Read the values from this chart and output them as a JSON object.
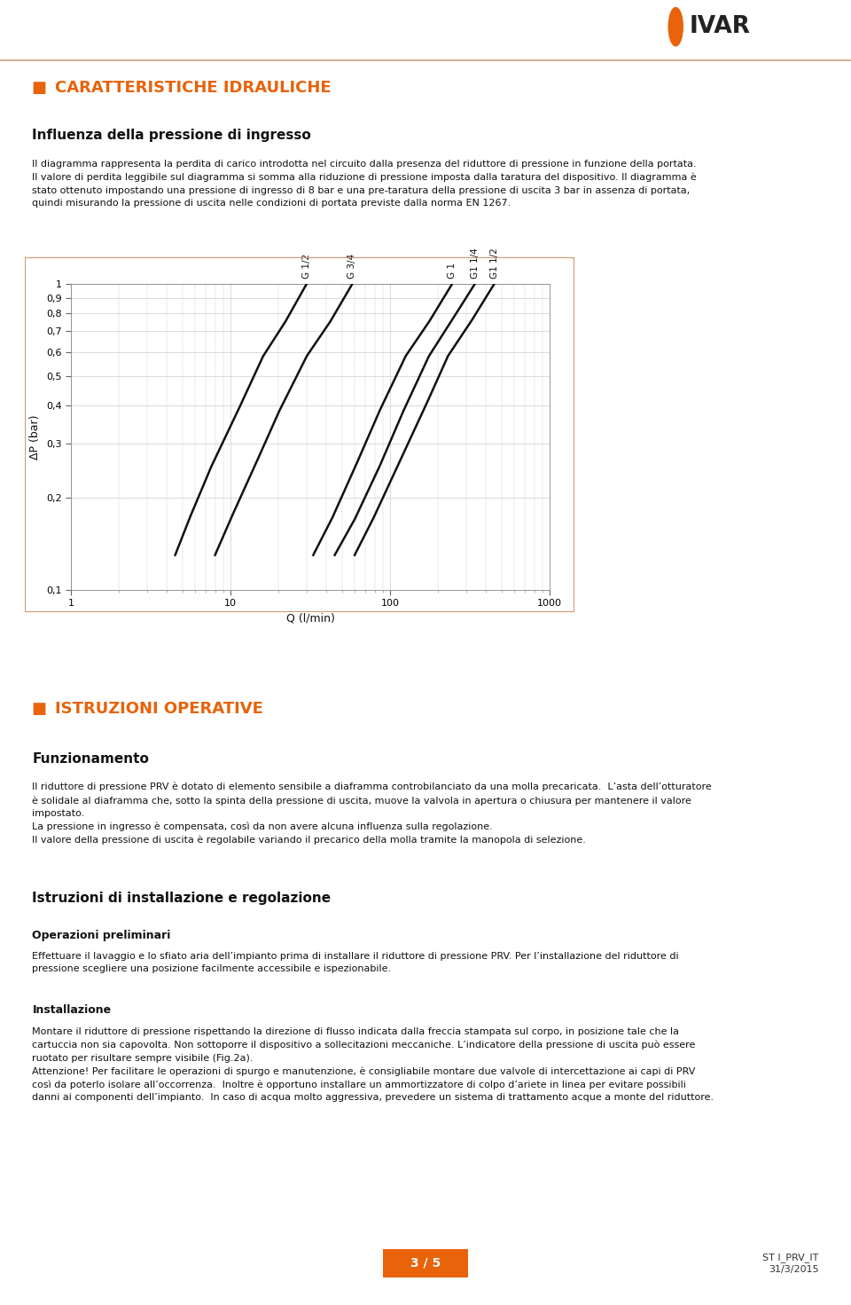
{
  "page_bg": "#ffffff",
  "orange_color": "#e8630a",
  "header_line_color": "#c8a07a",
  "title1": "CARATTERISTICHE IDRAULICHE",
  "subtitle1": "Influenza della pressione di ingresso",
  "para1_lines": [
    "Il diagramma rappresenta la perdita di carico introdotta nel circuito dalla presenza del riduttore di pressione in funzione della portata.",
    "Il valore di perdita leggibile sul diagramma si somma alla riduzione di pressione imposta dalla taratura del dispositivo. Il diagramma è",
    "stato ottenuto impostando una pressione di ingresso di 8 bar e una pre-taratura della pressione di uscita 3 bar in assenza di portata,",
    "quindi misurando la pressione di uscita nelle condizioni di portata previste dalla norma EN 1267."
  ],
  "title2": "ISTRUZIONI OPERATIVE",
  "subtitle2": "Funzionamento",
  "para2_lines": [
    "Il riduttore di pressione PRV è dotato di elemento sensibile a diaframma controbilanciato da una molla precaricata.  L’asta dell’otturatore",
    "è solidale al diaframma che, sotto la spinta della pressione di uscita, muove la valvola in apertura o chiusura per mantenere il valore",
    "impostato.",
    "La pressione in ingresso è compensata, così da non avere alcuna influenza sulla regolazione.",
    "Il valore della pressione di uscita è regolabile variando il precarico della molla tramite la manopola di selezione."
  ],
  "subtitle3": "Istruzioni di installazione e regolazione",
  "subsubtitle3a": "Operazioni preliminari",
  "para3a_lines": [
    "Effettuare il lavaggio e lo sfiato aria dell’impianto prima di installare il riduttore di pressione PRV. Per l’installazione del riduttore di",
    "pressione scegliere una posizione facilmente accessibile e ispezionabile."
  ],
  "subsubtitle3b": "Installazione",
  "para3b_lines": [
    "Montare il riduttore di pressione rispettando la direzione di flusso indicata dalla freccia stampata sul corpo, in posizione tale che la",
    "cartuccia non sia capovolta. Non sottoporre il dispositivo a sollecitazioni meccaniche. L’indicatore della pressione di uscita può essere",
    "ruotato per risultare sempre visibile (Fig.2a).",
    "Attenzione! Per facilitare le operazioni di spurgo e manutenzione, è consigliabile montare due valvole di intercettazione ai capi di PRV",
    "così da poterlo isolare all’occorrenza.  Inoltre è opportuno installare un ammortizzatore di colpo d’ariete in linea per evitare possibili",
    "danni ai componenti dell’impianto.  In caso di acqua molto aggressiva, prevedere un sistema di trattamento acque a monte del riduttore."
  ],
  "footer_page": "3 / 5",
  "footer_date": "ST I_PRV_IT\n31/3/2015",
  "chart_border_color": "#d4956a",
  "chart_grid_color": "#cccccc",
  "chart_bg": "#ffffff",
  "ylabel": "ΔP (bar)",
  "xlabel": "Q (l/min)",
  "curve_labels": [
    "G 1/2",
    "G 3/4",
    "G 1",
    "G1 1/4",
    "G1 1/2"
  ],
  "curves": [
    {
      "label": "G 1/2",
      "x": [
        4.5,
        5.5,
        7.5,
        11.0,
        16.0,
        22.0,
        30.0
      ],
      "y": [
        0.13,
        0.17,
        0.25,
        0.38,
        0.58,
        0.75,
        1.0
      ]
    },
    {
      "label": "G 3/4",
      "x": [
        8.0,
        10.0,
        14.0,
        20.0,
        30.0,
        42.0,
        58.0
      ],
      "y": [
        0.13,
        0.17,
        0.25,
        0.38,
        0.58,
        0.75,
        1.0
      ]
    },
    {
      "label": "G 1",
      "x": [
        33.0,
        43.0,
        60.0,
        85.0,
        125.0,
        175.0,
        245.0
      ],
      "y": [
        0.13,
        0.17,
        0.25,
        0.38,
        0.58,
        0.75,
        1.0
      ]
    },
    {
      "label": "G1 1/4",
      "x": [
        45.0,
        60.0,
        85.0,
        120.0,
        175.0,
        240.0,
        340.0
      ],
      "y": [
        0.13,
        0.17,
        0.25,
        0.38,
        0.58,
        0.75,
        1.0
      ]
    },
    {
      "label": "G1 1/2",
      "x": [
        60.0,
        78.0,
        110.0,
        160.0,
        230.0,
        320.0,
        450.0
      ],
      "y": [
        0.13,
        0.17,
        0.25,
        0.38,
        0.58,
        0.75,
        1.0
      ]
    }
  ]
}
